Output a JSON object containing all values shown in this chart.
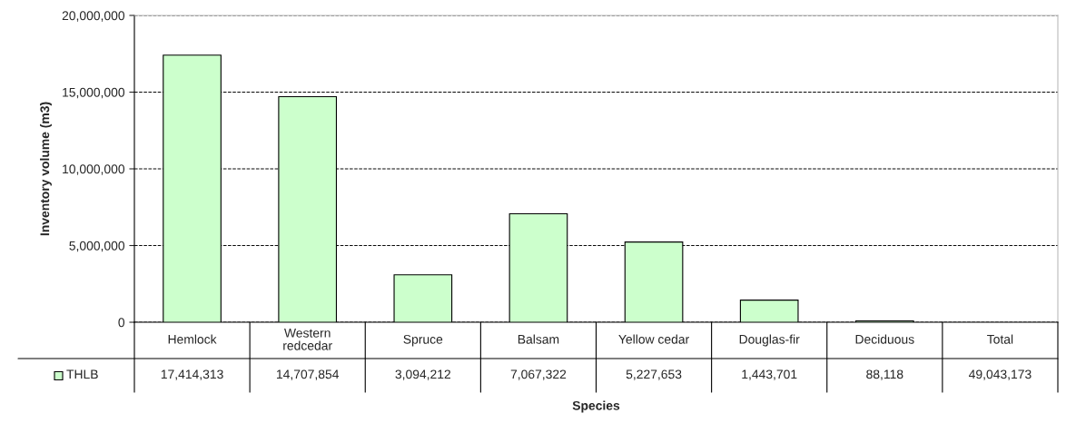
{
  "chart_data": {
    "type": "bar",
    "xlabel": "Species",
    "ylabel": "Inventory volume (m3)",
    "categories": [
      "Hemlock",
      "Western\nredcedar",
      "Spruce",
      "Balsam",
      "Yellow cedar",
      "Douglas-fir",
      "Deciduous",
      "Total"
    ],
    "series": [
      {
        "name": "THLB",
        "color": "#ccffcc",
        "values": [
          17414313,
          14707854,
          3094212,
          7067322,
          5227653,
          1443701,
          88118,
          null
        ],
        "value_labels": [
          "17,414,313",
          "14,707,854",
          "3,094,212",
          "7,067,322",
          "5,227,653",
          "1,443,701",
          "88,118",
          "49,043,173"
        ]
      }
    ],
    "ylim": [
      0,
      20000000
    ],
    "yticks": [
      {
        "value": 0,
        "label": "0"
      },
      {
        "value": 5000000,
        "label": "5,000,000"
      },
      {
        "value": 10000000,
        "label": "10,000,000"
      },
      {
        "value": 15000000,
        "label": "15,000,000"
      },
      {
        "value": 20000000,
        "label": "20,000,000"
      }
    ],
    "grid": "y",
    "line_style": "dashed",
    "legend": "bottom left"
  }
}
